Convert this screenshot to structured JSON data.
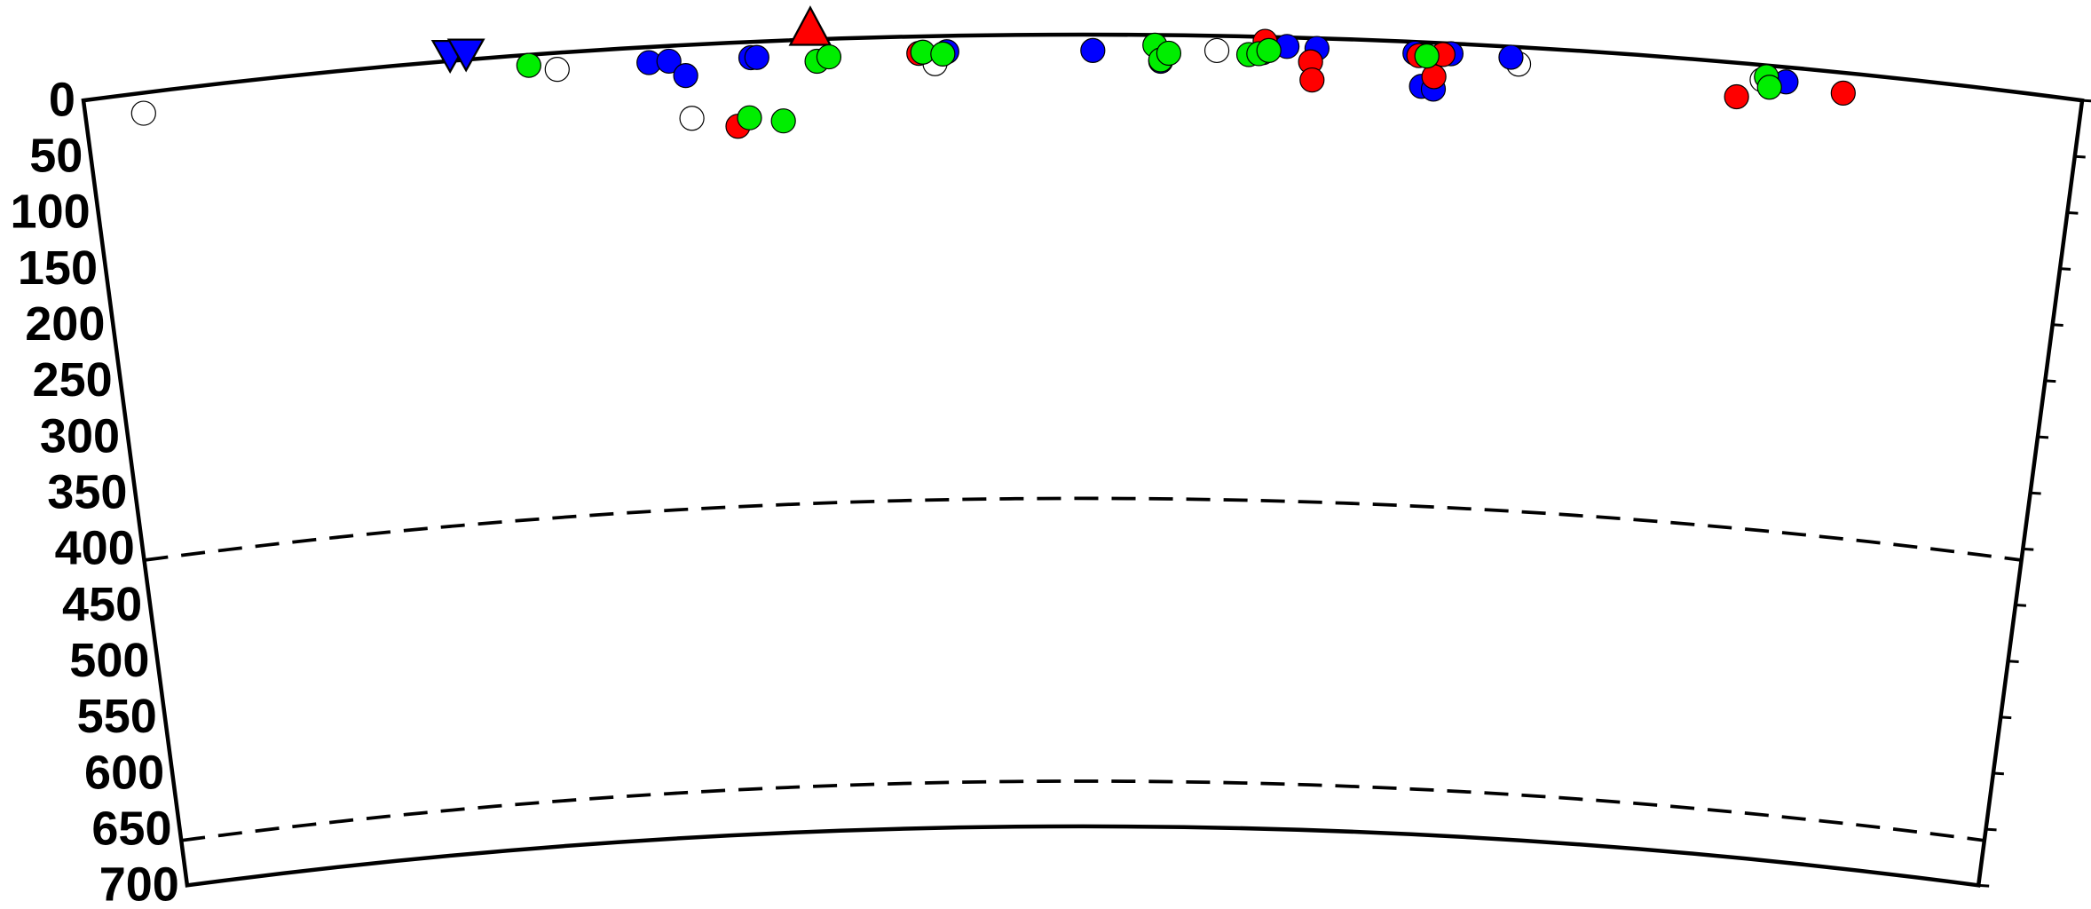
{
  "chart_data": {
    "type": "scatter",
    "xlim": [
      0,
      100
    ],
    "ylim": [
      0,
      700
    ],
    "yticks": [
      0,
      50,
      100,
      150,
      200,
      250,
      300,
      350,
      400,
      450,
      500,
      550,
      600,
      650,
      700
    ],
    "dashed_depths": [
      410,
      660
    ],
    "series": [
      {
        "color": "#ffffff",
        "x": [
          2.9,
          23.7,
          30.3,
          42.6,
          56.7,
          59.0,
          71.8,
          84.0
        ],
        "values": [
          18,
          14.6,
          65,
          24.4,
          13,
          14,
          15,
          13
        ]
      },
      {
        "color": "#0000ff",
        "x": [
          28.3,
          29.3,
          30.1,
          33.4,
          33.7,
          43.2,
          50.5,
          53.9,
          60.2,
          61.7,
          66.6,
          68.4,
          67.0,
          67.6,
          71.4,
          85.2
        ],
        "values": [
          13.8,
          13.5,
          27,
          14,
          14,
          14,
          14,
          23.2,
          8,
          9,
          10,
          9,
          39,
          41,
          9.3,
          13
        ]
      },
      {
        "color": "#ff0000",
        "x": [
          32.6,
          41.8,
          59.1,
          61.4,
          61.5,
          66.8,
          68.0,
          67.6,
          82.8,
          88.1
        ],
        "values": [
          74,
          15,
          4,
          21,
          37,
          12,
          10,
          30,
          30,
          18
        ]
      },
      {
        "color": "#00ee00",
        "x": [
          22.3,
          33.2,
          34.9,
          36.7,
          37.3,
          42.0,
          43.0,
          53.6,
          53.9,
          54.3,
          58.3,
          58.8,
          59.3,
          67.2,
          84.2,
          84.4
        ],
        "values": [
          9.3,
          67,
          71,
          19.4,
          15.9,
          14,
          16,
          9,
          22,
          16,
          16,
          15,
          12,
          12,
          10,
          19
        ]
      }
    ],
    "stations": [
      {
        "x": 18.4,
        "color": "#0000ff",
        "shape": "triangle-down"
      },
      {
        "x": 19.2,
        "color": "#0000ff",
        "shape": "triangle-down"
      },
      {
        "x": 36.4,
        "color": "#ff0000",
        "shape": "triangle-up"
      }
    ]
  }
}
